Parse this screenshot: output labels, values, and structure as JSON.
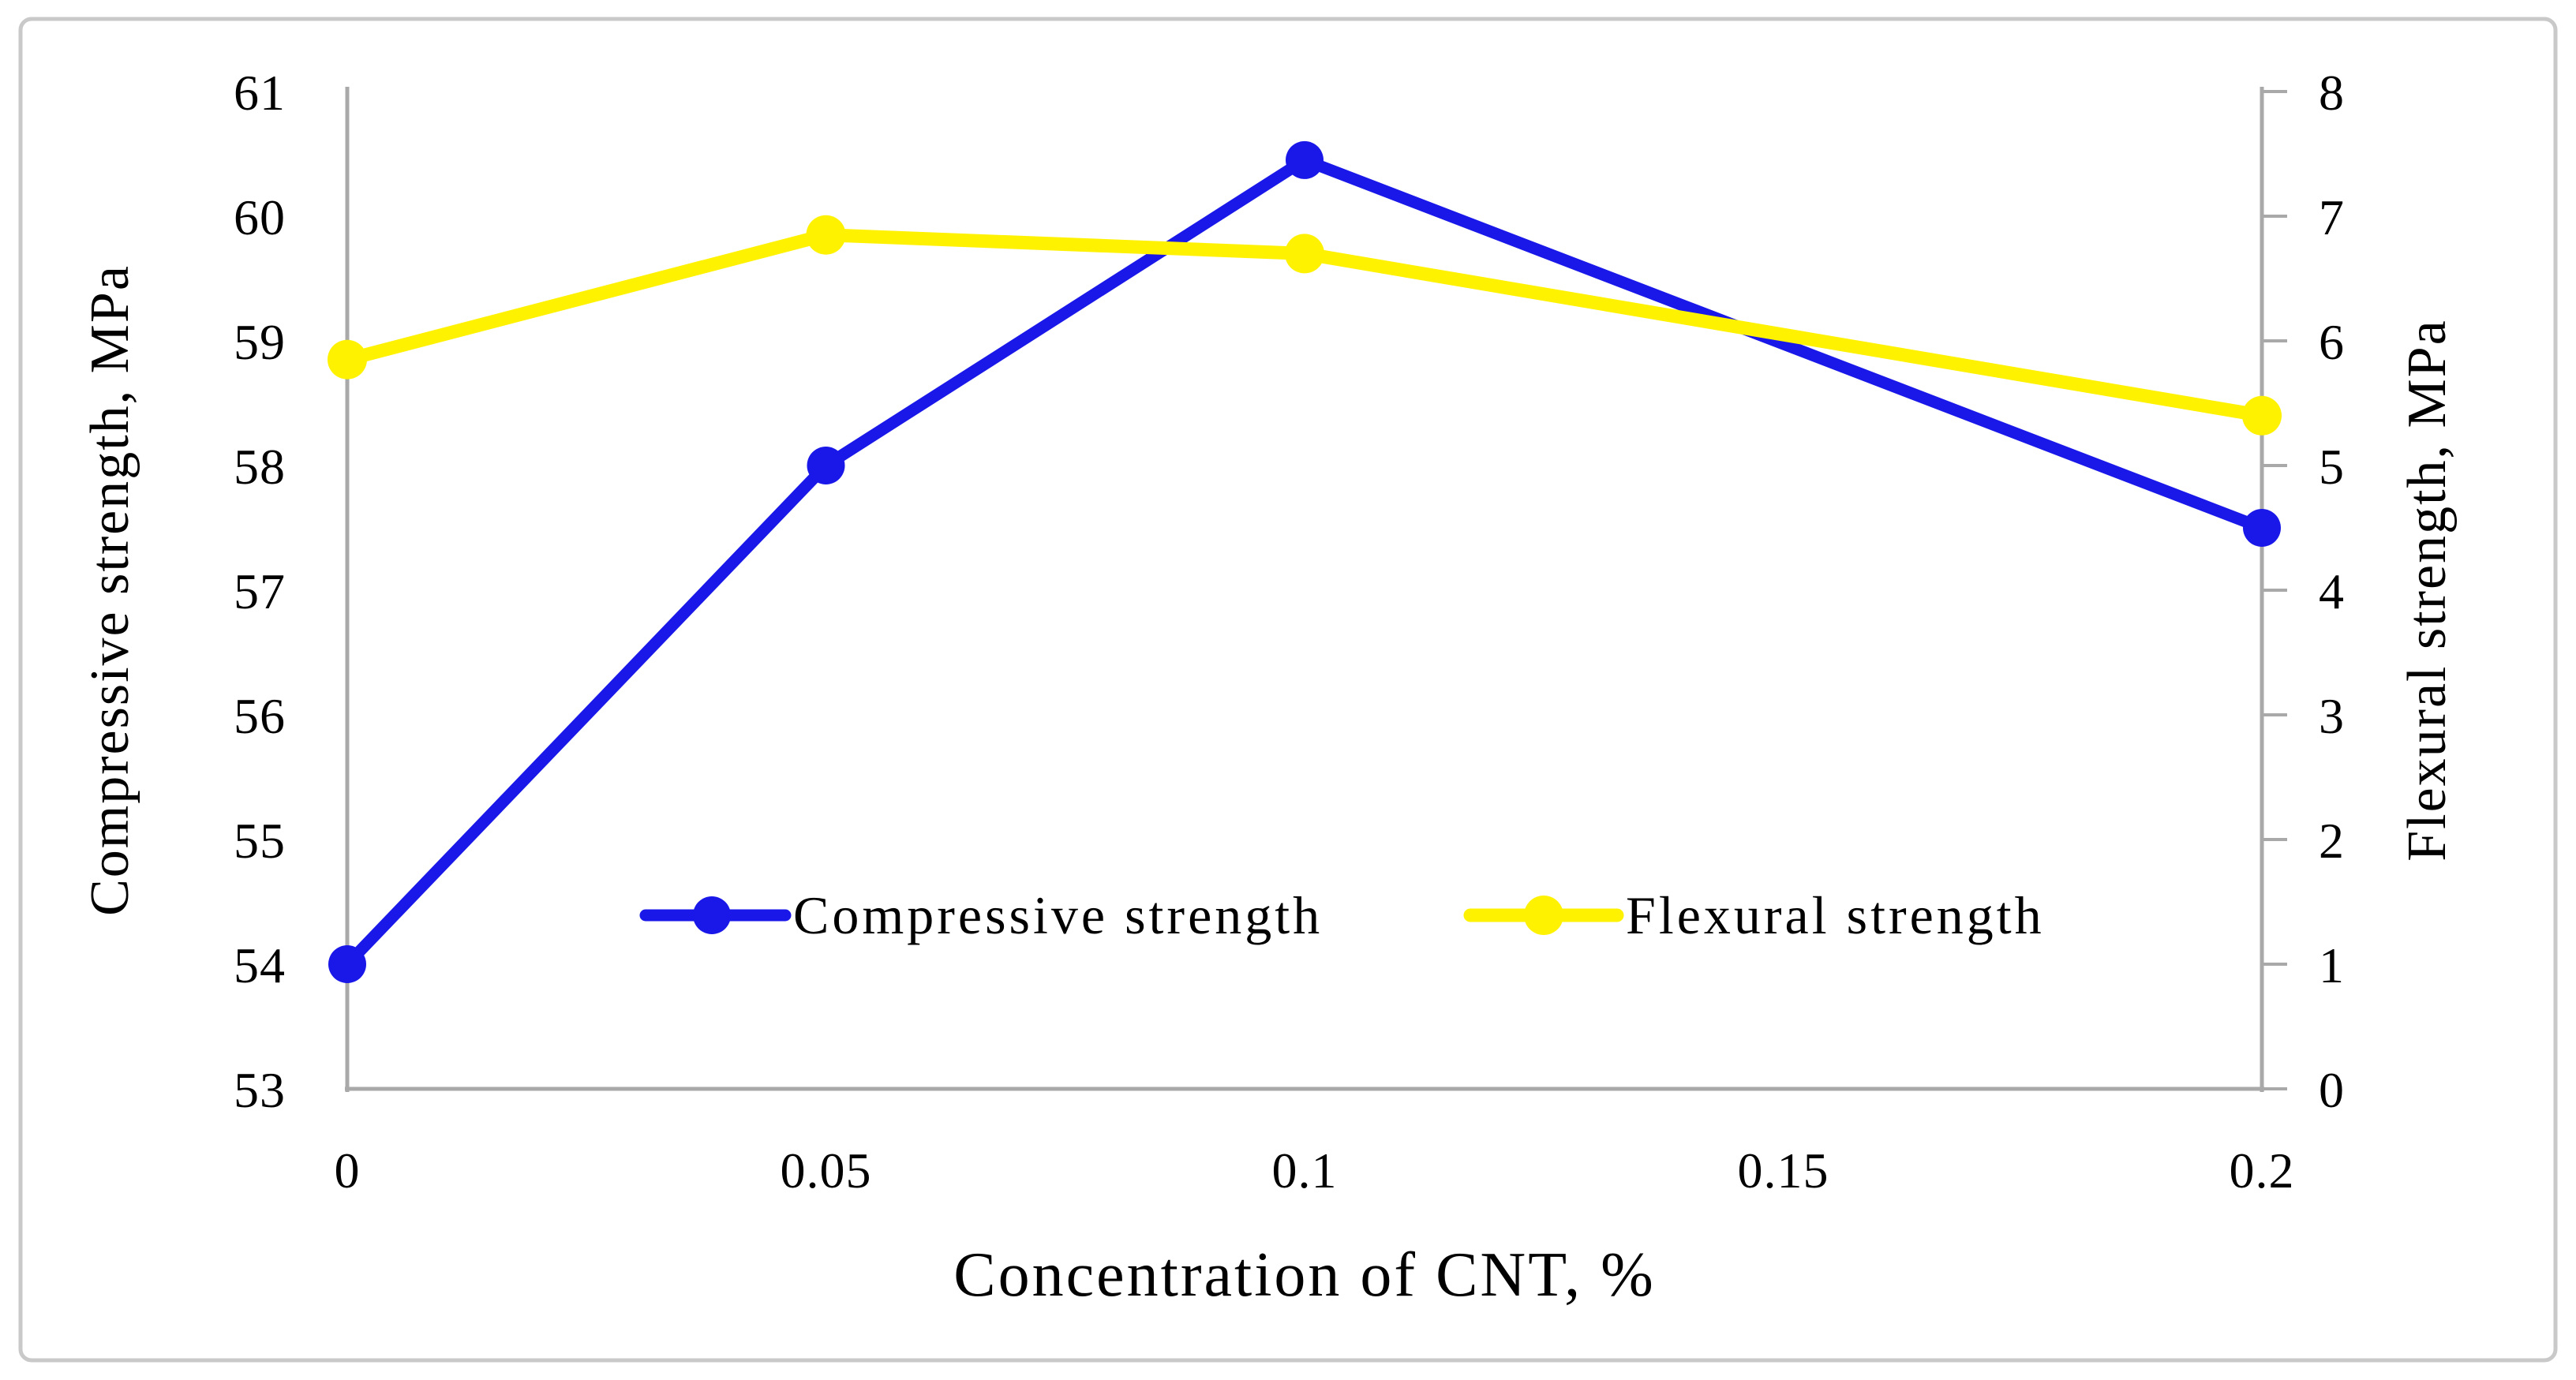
{
  "figure": {
    "background": "#ffffff",
    "border_color": "#c9c9c9",
    "axis_color": "#a9a9a9",
    "text_color": "#000000"
  },
  "chart_data": {
    "type": "line",
    "title": "",
    "xlabel": "Concentration of CNT, %",
    "x_tick_labels": [
      "0",
      "0.05",
      "0.1",
      "0.15",
      "0.2"
    ],
    "x_tick_values": [
      0,
      0.05,
      0.1,
      0.15,
      0.2
    ],
    "x_range": [
      0,
      0.2
    ],
    "grid": false,
    "left_axis": {
      "label": "Compressive strength, MPa",
      "min": 53,
      "max": 61,
      "step": 1,
      "tick_labels": [
        "53",
        "54",
        "55",
        "56",
        "57",
        "58",
        "59",
        "60",
        "61"
      ]
    },
    "right_axis": {
      "label": "Flexural strength, MPa",
      "min": 0,
      "max": 8,
      "step": 1,
      "tick_labels": [
        "0",
        "1",
        "2",
        "3",
        "4",
        "5",
        "6",
        "7",
        "8"
      ]
    },
    "series": [
      {
        "name": "Compressive strength",
        "axis": "left",
        "color": "#1a18e8",
        "marker": "circle",
        "line_width": 15,
        "marker_radius": 24,
        "x": [
          0,
          0.05,
          0.1,
          0.2
        ],
        "values": [
          54.0,
          58.0,
          60.45,
          57.5
        ]
      },
      {
        "name": "Flexural strength",
        "axis": "right",
        "color": "#fff200",
        "marker": "circle",
        "line_width": 17,
        "marker_radius": 25,
        "x": [
          0,
          0.05,
          0.1,
          0.2
        ],
        "values": [
          5.85,
          6.85,
          6.7,
          5.4
        ]
      }
    ],
    "legend": {
      "position": "inside-bottom-center",
      "entries": [
        "Compressive strength",
        "Flexural strength"
      ]
    }
  }
}
